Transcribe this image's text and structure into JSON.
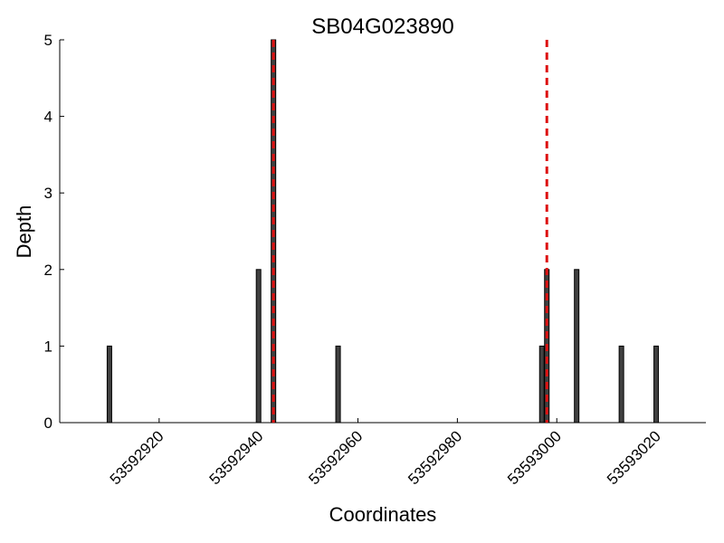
{
  "chart_data": {
    "type": "bar",
    "title": "SB04G023890",
    "xlabel": "Coordinates",
    "ylabel": "Depth",
    "xlim": [
      53592900,
      53593030
    ],
    "ylim": [
      0,
      5
    ],
    "x_ticks": [
      53592920,
      53592940,
      53592960,
      53592980,
      53593000,
      53593020
    ],
    "x_tick_labels": [
      "53592920",
      "53592940",
      "53592960",
      "53592980",
      "53593000",
      "53593020"
    ],
    "y_ticks": [
      0,
      1,
      2,
      3,
      4,
      5
    ],
    "y_tick_labels": [
      "0",
      "1",
      "2",
      "3",
      "4",
      "5"
    ],
    "series": [
      {
        "x": [
          53592910,
          53592940,
          53592943,
          53592956,
          53592997,
          53592998,
          53593004,
          53593013,
          53593020
        ],
        "values": [
          1,
          2,
          5,
          1,
          1,
          2,
          2,
          1,
          1
        ]
      }
    ],
    "reference_lines": [
      {
        "x": 53592943,
        "style": "dashed",
        "color": "#dd1111"
      },
      {
        "x": 53592998,
        "style": "dashed",
        "color": "#dd1111"
      }
    ],
    "bar_color": "#404040",
    "grid": false,
    "legend": "none"
  }
}
